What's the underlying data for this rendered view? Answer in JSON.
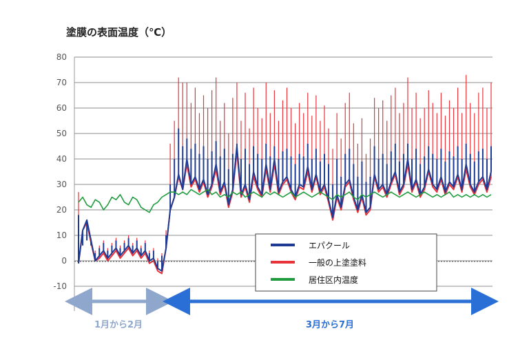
{
  "chart_data": {
    "type": "line",
    "title": "塗膜の表面温度（℃）",
    "ylim": [
      -15,
      80
    ],
    "yticks": [
      80,
      70,
      60,
      50,
      40,
      30,
      20,
      10,
      0,
      -10
    ],
    "grid": true,
    "legend_position": "bottom-right",
    "series": [
      {
        "name": "エパクール",
        "color": "#1f3a93",
        "values": [
          -1,
          12,
          16,
          8,
          0,
          2,
          4,
          1,
          3,
          5,
          2,
          4,
          6,
          3,
          5,
          2,
          4,
          0,
          1,
          -3,
          -4,
          5,
          20,
          25,
          34,
          28,
          40,
          30,
          33,
          28,
          32,
          26,
          30,
          38,
          27,
          31,
          22,
          28,
          45,
          26,
          30,
          24,
          35,
          29,
          26,
          38,
          28,
          40,
          27,
          31,
          33,
          28,
          25,
          30,
          29,
          37,
          28,
          34,
          27,
          30,
          24,
          17,
          26,
          21,
          30,
          32,
          25,
          20,
          26,
          19,
          21,
          34,
          28,
          30,
          26,
          31,
          35,
          27,
          30,
          40,
          28,
          32,
          26,
          29,
          36,
          30,
          28,
          33,
          27,
          31,
          29,
          34,
          28,
          38,
          30,
          27,
          31,
          33,
          28,
          35
        ],
        "peaks": [
          18,
          6,
          8,
          6,
          3,
          5,
          7,
          4,
          6,
          8,
          5,
          7,
          9,
          6,
          8,
          5,
          7,
          3,
          4,
          0,
          2,
          10,
          30,
          40,
          52,
          45,
          48,
          44,
          46,
          42,
          45,
          40,
          43,
          47,
          41,
          44,
          36,
          42,
          46,
          40,
          44,
          38,
          45,
          42,
          40,
          46,
          41,
          45,
          40,
          43,
          44,
          41,
          38,
          42,
          41,
          46,
          40,
          44,
          39,
          42,
          38,
          30,
          40,
          33,
          42,
          44,
          38,
          33,
          39,
          31,
          33,
          45,
          40,
          42,
          38,
          43,
          46,
          39,
          42,
          46,
          40,
          44,
          38,
          41,
          45,
          42,
          40,
          44,
          39,
          43,
          41,
          45,
          40,
          46,
          42,
          39,
          43,
          44,
          40,
          45
        ]
      },
      {
        "name": "一般の上塗塗料",
        "color": "#e8333a",
        "values": [
          -1,
          12,
          15,
          7,
          0,
          1,
          3,
          0,
          2,
          4,
          1,
          3,
          5,
          2,
          4,
          1,
          3,
          -1,
          0,
          -4,
          -5,
          5,
          20,
          25,
          33,
          28,
          38,
          29,
          32,
          27,
          31,
          25,
          29,
          36,
          26,
          30,
          21,
          27,
          43,
          25,
          29,
          23,
          33,
          28,
          25,
          36,
          27,
          38,
          26,
          30,
          32,
          27,
          24,
          29,
          28,
          35,
          27,
          33,
          26,
          29,
          23,
          16,
          25,
          20,
          29,
          31,
          24,
          19,
          25,
          18,
          20,
          33,
          27,
          29,
          25,
          30,
          34,
          26,
          29,
          38,
          27,
          31,
          25,
          28,
          35,
          29,
          27,
          32,
          26,
          30,
          28,
          33,
          27,
          36,
          29,
          26,
          30,
          32,
          27,
          33
        ],
        "peaks": [
          27,
          8,
          10,
          8,
          4,
          6,
          8,
          5,
          7,
          9,
          6,
          8,
          10,
          7,
          9,
          6,
          8,
          4,
          5,
          1,
          3,
          12,
          46,
          55,
          72,
          70,
          70,
          62,
          68,
          58,
          65,
          60,
          67,
          72,
          55,
          62,
          50,
          64,
          70,
          55,
          66,
          52,
          68,
          60,
          56,
          70,
          58,
          67,
          55,
          63,
          68,
          60,
          54,
          62,
          58,
          66,
          57,
          65,
          55,
          61,
          52,
          44,
          58,
          48,
          62,
          66,
          54,
          46,
          56,
          42,
          48,
          64,
          60,
          63,
          55,
          65,
          68,
          58,
          62,
          72,
          60,
          66,
          56,
          60,
          67,
          62,
          58,
          66,
          57,
          63,
          60,
          68,
          58,
          73,
          62,
          58,
          66,
          68,
          60,
          70
        ]
      },
      {
        "name": "居住区内温度",
        "color": "#1e9b3c",
        "values": [
          23,
          25,
          22,
          21,
          24,
          23,
          20,
          22,
          25,
          24,
          26,
          23,
          22,
          25,
          24,
          21,
          20,
          19,
          22,
          23,
          25,
          26,
          27,
          27,
          26,
          27,
          26,
          28,
          27,
          26,
          27,
          28,
          26,
          27,
          25,
          26,
          25,
          27,
          26,
          27,
          25,
          26,
          27,
          26,
          25,
          27,
          26,
          27,
          26,
          25,
          26,
          27,
          25,
          26,
          27,
          26,
          25,
          26,
          27,
          26,
          25,
          24,
          26,
          25,
          26,
          27,
          25,
          24,
          26,
          25,
          26,
          27,
          26,
          25,
          26,
          27,
          26,
          25,
          26,
          27,
          26,
          25,
          26,
          27,
          26,
          25,
          26,
          25,
          26,
          27,
          25,
          26,
          25,
          26,
          25,
          26,
          25,
          26,
          25,
          26
        ]
      }
    ],
    "period_labels": [
      {
        "label": "1月から2月",
        "color": "#8fa7cc"
      },
      {
        "label": "3月から7月",
        "color": "#2a6fd6"
      }
    ]
  }
}
